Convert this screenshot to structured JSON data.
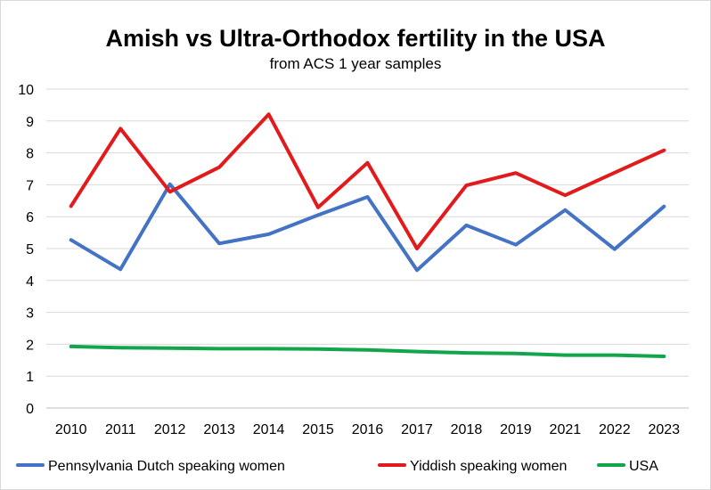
{
  "chart_data": {
    "type": "line",
    "title": "Amish vs Ultra-Orthodox fertility in the USA",
    "subtitle": "from ACS 1 year samples",
    "categories": [
      "2010",
      "2011",
      "2012",
      "2013",
      "2014",
      "2015",
      "2016",
      "2017",
      "2018",
      "2019",
      "2021",
      "2022",
      "2023"
    ],
    "ylim": [
      0,
      10
    ],
    "yticks": [
      "0",
      "1",
      "2",
      "3",
      "4",
      "5",
      "6",
      "7",
      "8",
      "9",
      "10"
    ],
    "grid": true,
    "legend_position": "bottom",
    "series": [
      {
        "name": "Pennsylvania Dutch speaking women",
        "color": "#4472c4",
        "values": [
          5.27,
          4.35,
          7.02,
          5.16,
          5.45,
          6.05,
          6.62,
          4.32,
          5.73,
          5.12,
          6.21,
          4.98,
          6.32
        ]
      },
      {
        "name": "Yiddish speaking women",
        "color": "#e31a1c",
        "values": [
          6.33,
          8.76,
          6.78,
          7.55,
          9.21,
          6.29,
          7.69,
          5.0,
          6.98,
          7.37,
          6.67,
          7.38,
          8.08
        ]
      },
      {
        "name": "USA",
        "color": "#13a54b",
        "values": [
          1.93,
          1.89,
          1.88,
          1.86,
          1.86,
          1.85,
          1.82,
          1.77,
          1.73,
          1.71,
          1.66,
          1.66,
          1.62
        ]
      }
    ]
  }
}
